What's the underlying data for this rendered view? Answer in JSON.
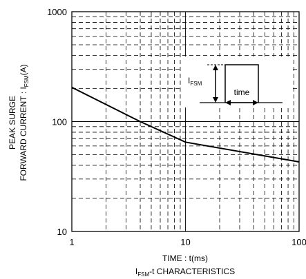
{
  "chart_data": {
    "type": "line",
    "xscale": "log",
    "yscale": "log",
    "xlim": [
      1,
      100
    ],
    "ylim": [
      10,
      1000
    ],
    "x_ticks": [
      {
        "value": 1,
        "label": "1"
      },
      {
        "value": 10,
        "label": "10"
      },
      {
        "value": 100,
        "label": "100"
      }
    ],
    "y_ticks": [
      {
        "value": 10,
        "label": "10"
      },
      {
        "value": 100,
        "label": "100"
      },
      {
        "value": 1000,
        "label": "1000"
      }
    ],
    "xlabel": "TIME : t(ms)",
    "ylabel": {
      "line1": "PEAK SURGE",
      "line2_prefix": "FORWARD CURRENT : I",
      "line2_sub": "FSM",
      "line2_suffix": "(A)"
    },
    "caption": {
      "prefix": "I",
      "sub": "FSM",
      "suffix": "-t CHARACTERISTICS"
    },
    "grid": true,
    "series": [
      {
        "points": [
          {
            "x": 1,
            "y": 205
          },
          {
            "x": 4,
            "y": 100
          },
          {
            "x": 10,
            "y": 65
          },
          {
            "x": 100,
            "y": 43
          }
        ]
      }
    ],
    "inset": {
      "label_prefix": "I",
      "label_sub": "FSM",
      "time_label": "time"
    }
  }
}
